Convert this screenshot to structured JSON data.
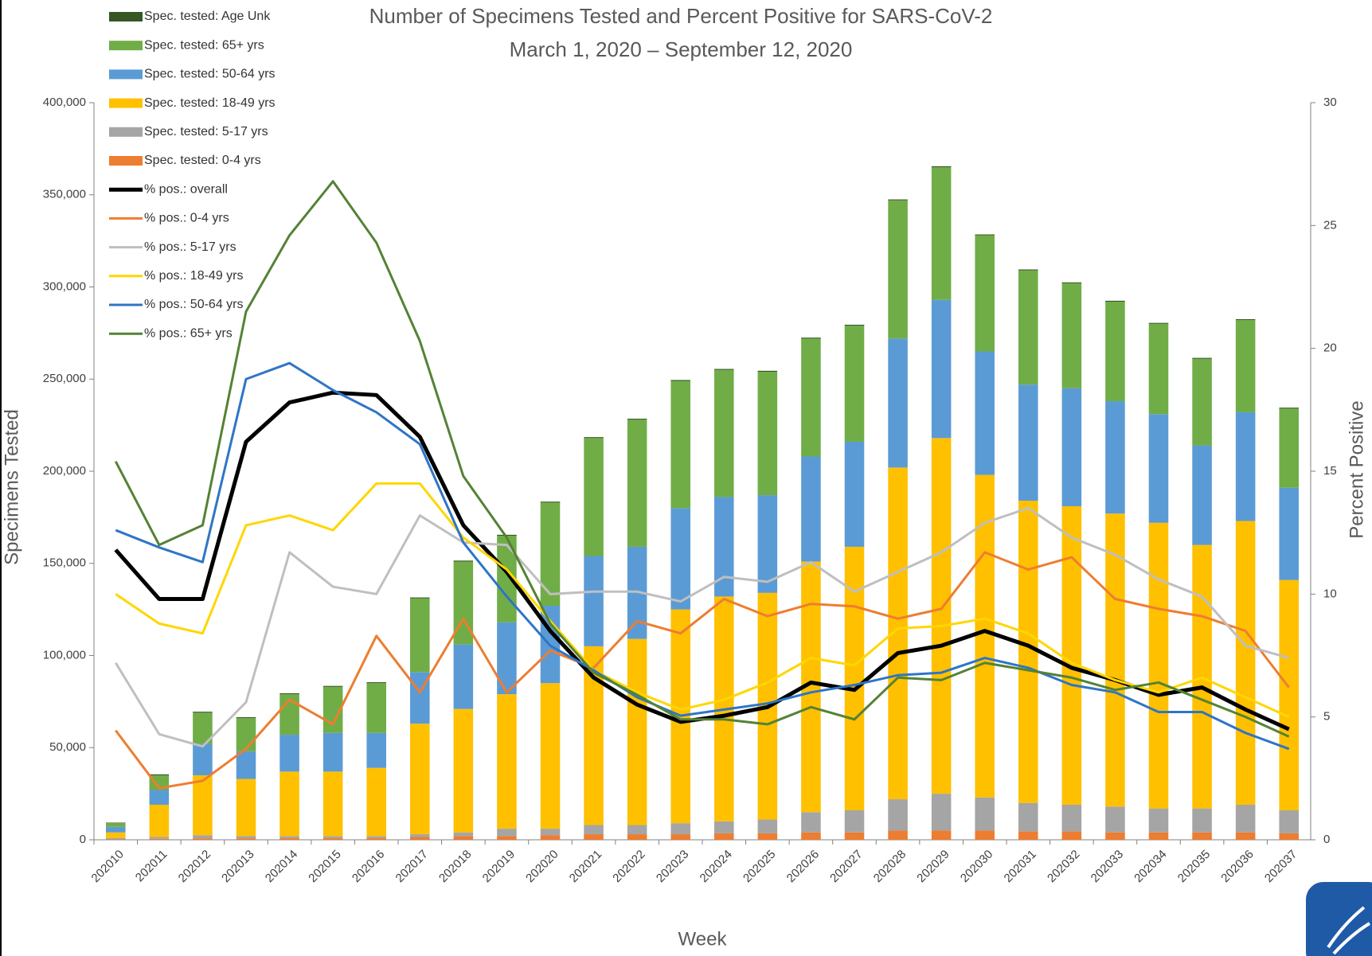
{
  "chart_data": {
    "type": "combo",
    "title": "Number of Specimens Tested and Percent Positive for SARS-CoV-2",
    "subtitle": "March 1, 2020 – September 12, 2020",
    "x_label": "Week",
    "y_label": "Specimens Tested",
    "y2_label": "Percent Positive",
    "stacked": true,
    "categories": [
      "202010",
      "202011",
      "202012",
      "202013",
      "202014",
      "202015",
      "202016",
      "202017",
      "202018",
      "202019",
      "202020",
      "202021",
      "202022",
      "202023",
      "202024",
      "202025",
      "202026",
      "202027",
      "202028",
      "202029",
      "202030",
      "202031",
      "202032",
      "202033",
      "202034",
      "202035",
      "202036",
      "202037"
    ],
    "ylim": [
      0,
      400000
    ],
    "yticks": [
      0,
      {
        "value": 50000,
        "label": "50,000"
      },
      {
        "value": 100000,
        "label": "100,000"
      },
      {
        "value": 150000,
        "label": "150,000"
      },
      {
        "value": 200000,
        "label": "200,000"
      },
      {
        "value": 250000,
        "label": "250,000"
      },
      {
        "value": 300000,
        "label": "300,000"
      },
      {
        "value": 350000,
        "label": "350,000"
      },
      {
        "value": 400000,
        "label": "400,000"
      }
    ],
    "y2lim": [
      0,
      30
    ],
    "y2ticks": [
      0,
      5,
      10,
      15,
      20,
      25,
      30
    ],
    "series": [
      {
        "name": "Spec. tested: Age Unk",
        "type": "bar",
        "color": "#375623",
        "values": [
          300,
          500,
          500,
          500,
          500,
          500,
          500,
          500,
          500,
          500,
          500,
          500,
          500,
          500,
          500,
          500,
          500,
          500,
          500,
          500,
          500,
          500,
          500,
          500,
          500,
          500,
          500,
          500
        ]
      },
      {
        "name": "Spec. tested: 65+ yrs",
        "type": "bar",
        "color": "#70ad47",
        "values": [
          2000,
          8000,
          17000,
          18000,
          22000,
          25000,
          27000,
          40000,
          45000,
          47000,
          56000,
          64000,
          69000,
          69000,
          69000,
          67000,
          64000,
          63000,
          75000,
          72000,
          63000,
          62000,
          57000,
          54000,
          49000,
          47000,
          50000,
          43000
        ]
      },
      {
        "name": "Spec. tested: 50-64 yrs",
        "type": "bar",
        "color": "#5b9bd5",
        "values": [
          3000,
          8000,
          17000,
          15000,
          20000,
          21000,
          19000,
          28000,
          35000,
          39000,
          42000,
          49000,
          50000,
          55000,
          54000,
          53000,
          57000,
          57000,
          70000,
          75000,
          67000,
          63000,
          64000,
          61000,
          59000,
          54000,
          59000,
          50000
        ]
      },
      {
        "name": "Spec. tested: 18-49 yrs",
        "type": "bar",
        "color": "#ffc000",
        "values": [
          3000,
          17500,
          32500,
          31000,
          35000,
          35000,
          37000,
          60000,
          67000,
          73000,
          79000,
          97000,
          101000,
          116000,
          122000,
          123000,
          136000,
          143000,
          180000,
          193000,
          175000,
          164000,
          162000,
          159000,
          155000,
          143000,
          154000,
          125000
        ]
      },
      {
        "name": "Spec. tested: 5-17 yrs",
        "type": "bar",
        "color": "#a5a5a5",
        "values": [
          800,
          1000,
          1700,
          1200,
          1000,
          1000,
          1000,
          1500,
          2000,
          4000,
          3500,
          5000,
          5000,
          6000,
          6500,
          7500,
          11000,
          12000,
          17000,
          20000,
          18000,
          15500,
          14500,
          14000,
          13000,
          13000,
          15000,
          12500
        ]
      },
      {
        "name": "Spec. tested: 0-4 yrs",
        "type": "bar",
        "color": "#ed7d31",
        "values": [
          200,
          500,
          800,
          800,
          1000,
          1000,
          1000,
          1500,
          2000,
          2000,
          2500,
          3000,
          3000,
          3000,
          3500,
          3500,
          4000,
          4000,
          5000,
          5000,
          5000,
          4500,
          4500,
          4000,
          4000,
          4000,
          4000,
          3500
        ]
      },
      {
        "name": "% pos.: overall",
        "type": "line",
        "axis": "y2",
        "color": "#000000",
        "values": [
          11.8,
          9.8,
          9.8,
          16.2,
          17.8,
          18.2,
          18.1,
          16.4,
          12.8,
          10.9,
          8.5,
          6.6,
          5.5,
          4.8,
          5.05,
          5.4,
          6.4,
          6.1,
          7.6,
          7.9,
          8.5,
          7.9,
          7.0,
          6.5,
          5.9,
          6.2,
          5.3,
          4.5
        ]
      },
      {
        "name": "% pos.: 0-4 yrs",
        "type": "line",
        "axis": "y2",
        "color": "#ed7d31",
        "values": [
          4.45,
          2.1,
          2.4,
          3.7,
          5.7,
          4.7,
          8.3,
          6.0,
          9.0,
          6.0,
          7.7,
          7.0,
          8.9,
          8.4,
          9.8,
          9.1,
          9.6,
          9.5,
          9.0,
          9.4,
          11.7,
          11.0,
          11.5,
          9.8,
          9.4,
          9.1,
          8.5,
          6.2
        ]
      },
      {
        "name": "% pos.: 5-17 yrs",
        "type": "line",
        "axis": "y2",
        "color": "#bfbfbf",
        "values": [
          7.2,
          4.3,
          3.8,
          5.6,
          11.7,
          10.3,
          10.0,
          13.2,
          12.1,
          12.0,
          10.0,
          10.1,
          10.1,
          9.7,
          10.7,
          10.5,
          11.3,
          10.1,
          10.9,
          11.7,
          12.9,
          13.5,
          12.3,
          11.6,
          10.6,
          9.9,
          7.9,
          7.4
        ]
      },
      {
        "name": "% pos.: 18-49 yrs",
        "type": "line",
        "axis": "y2",
        "color": "#ffd600",
        "values": [
          10.0,
          8.8,
          8.4,
          12.8,
          13.2,
          12.6,
          14.5,
          14.5,
          12.3,
          11.0,
          8.9,
          6.9,
          6.0,
          5.3,
          5.7,
          6.4,
          7.4,
          7.1,
          8.6,
          8.7,
          9.0,
          8.4,
          7.2,
          6.5,
          6.0,
          6.6,
          5.8,
          5.0
        ]
      },
      {
        "name": "% pos.: 50-64 yrs",
        "type": "line",
        "axis": "y2",
        "color": "#2e75c6",
        "values": [
          12.6,
          11.9,
          11.3,
          18.75,
          19.4,
          18.3,
          17.4,
          16.1,
          12.1,
          9.9,
          7.9,
          6.9,
          5.8,
          5.05,
          5.3,
          5.55,
          6.0,
          6.3,
          6.7,
          6.8,
          7.4,
          7.0,
          6.3,
          6.0,
          5.2,
          5.2,
          4.35,
          3.7
        ]
      },
      {
        "name": "% pos.: 65+ yrs",
        "type": "line",
        "axis": "y2",
        "color": "#548235",
        "values": [
          15.4,
          12.0,
          12.8,
          21.5,
          24.6,
          26.8,
          24.3,
          20.3,
          14.8,
          12.3,
          8.8,
          6.8,
          5.9,
          4.9,
          4.9,
          4.7,
          5.4,
          4.9,
          6.6,
          6.5,
          7.2,
          6.9,
          6.6,
          6.1,
          6.4,
          5.7,
          5.0,
          4.2
        ]
      }
    ]
  }
}
